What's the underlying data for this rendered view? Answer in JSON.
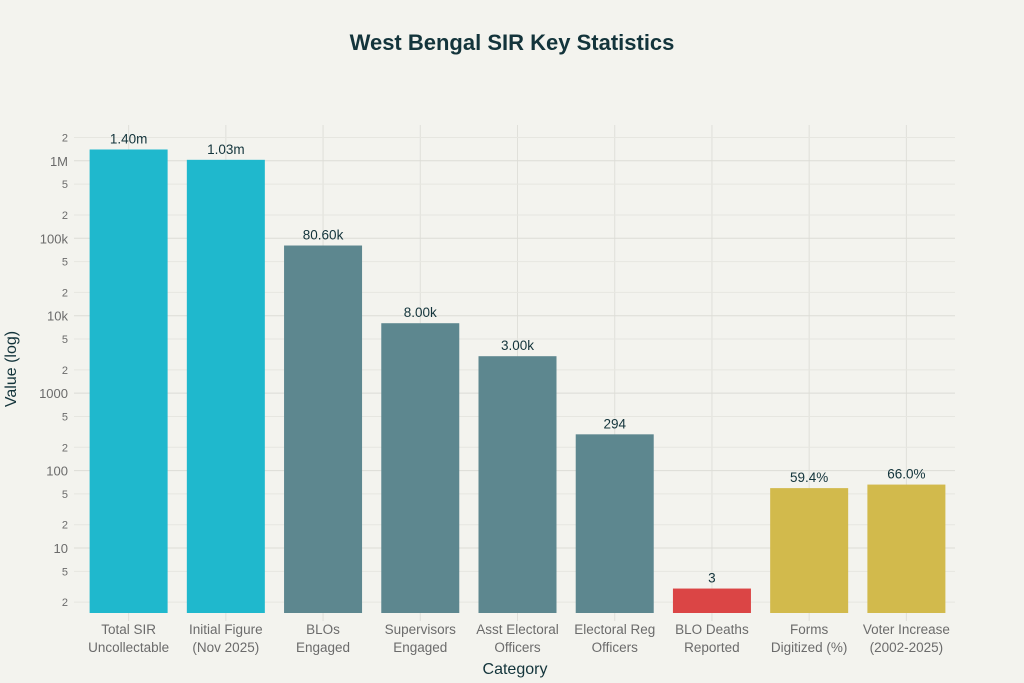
{
  "chart_data": {
    "type": "bar",
    "title": "West Bengal SIR Key Statistics",
    "xlabel": "Category",
    "ylabel": "Value (log)",
    "yscale": "log",
    "ylim": [
      1.45,
      2900000
    ],
    "grid": true,
    "legend": "none",
    "categories": [
      [
        "Total SIR",
        "Uncollectable"
      ],
      [
        "Initial Figure",
        "(Nov 2025)"
      ],
      [
        "BLOs",
        "Engaged"
      ],
      [
        "Supervisors",
        "Engaged"
      ],
      [
        "Asst Electoral",
        "Officers"
      ],
      [
        "Electoral Reg",
        "Officers"
      ],
      [
        "BLO Deaths",
        "Reported"
      ],
      [
        "Forms",
        "Digitized (%)"
      ],
      [
        "Voter Increase",
        "(2002-2025)"
      ]
    ],
    "values": [
      1400000,
      1030000,
      80600,
      8000,
      3000,
      294,
      3,
      59.4,
      66.0
    ],
    "data_labels": [
      "1.40m",
      "1.03m",
      "80.60k",
      "8.00k",
      "3.00k",
      "294",
      "3",
      "59.4%",
      "66.0%"
    ],
    "colors": [
      "#1FB8CD",
      "#1FB8CD",
      "#5D878F",
      "#5D878F",
      "#5D878F",
      "#5D878F",
      "#DB4545",
      "#D2BA4C",
      "#D2BA4C"
    ],
    "major_ticks": [
      {
        "value": 10,
        "label": "10"
      },
      {
        "value": 100,
        "label": "100"
      },
      {
        "value": 1000,
        "label": "1000"
      },
      {
        "value": 10000,
        "label": "10k"
      },
      {
        "value": 100000,
        "label": "100k"
      },
      {
        "value": 1000000,
        "label": "1M"
      }
    ],
    "minor_ticks": [
      {
        "value": 2,
        "label": "2"
      },
      {
        "value": 5,
        "label": "5"
      },
      {
        "value": 20,
        "label": "2"
      },
      {
        "value": 50,
        "label": "5"
      },
      {
        "value": 200,
        "label": "2"
      },
      {
        "value": 500,
        "label": "5"
      },
      {
        "value": 2000,
        "label": "2"
      },
      {
        "value": 5000,
        "label": "5"
      },
      {
        "value": 20000,
        "label": "2"
      },
      {
        "value": 50000,
        "label": "5"
      },
      {
        "value": 200000,
        "label": "2"
      },
      {
        "value": 500000,
        "label": "5"
      },
      {
        "value": 2000000,
        "label": "2"
      }
    ]
  }
}
